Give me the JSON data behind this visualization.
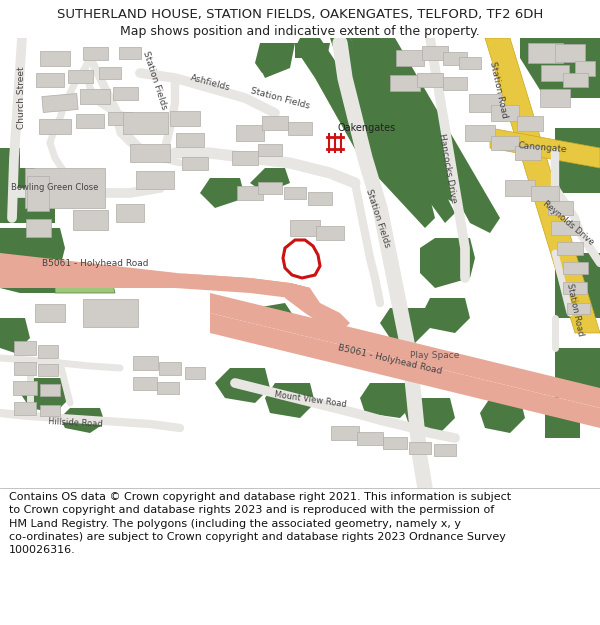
{
  "title_line1": "SUTHERLAND HOUSE, STATION FIELDS, OAKENGATES, TELFORD, TF2 6DH",
  "title_line2": "Map shows position and indicative extent of the property.",
  "footer_text": "Contains OS data © Crown copyright and database right 2021. This information is subject\nto Crown copyright and database rights 2023 and is reproduced with the permission of\nHM Land Registry. The polygons (including the associated geometry, namely x, y\nco-ordinates) are subject to Crown copyright and database rights 2023 Ordnance Survey\n100026316.",
  "bg_color": "#ffffff",
  "map_bg": "#eeece8",
  "green": "#4a7a42",
  "light_green": "#9dc87a",
  "road_yellow": "#e8c840",
  "road_salmon": "#e8a898",
  "road_white": "#e8e6e2",
  "building": "#d0ccc8",
  "building_edge": "#b0aca8",
  "plot_color": "#cc1111",
  "rail_color": "#cc1111",
  "text_dark": "#222222",
  "text_road": "#444444",
  "title_fs": 9.5,
  "subtitle_fs": 9.0,
  "footer_fs": 8.0
}
